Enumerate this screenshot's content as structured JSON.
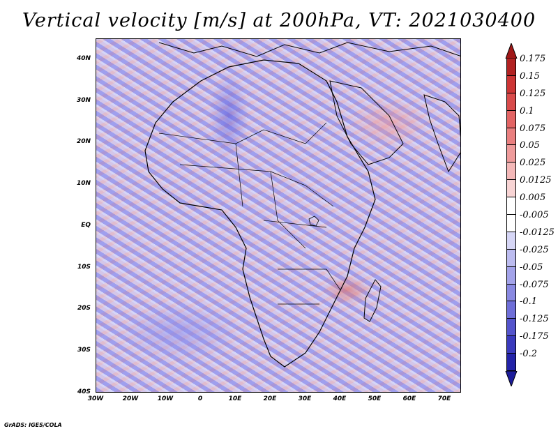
{
  "title": "Vertical velocity [m/s] at 200hPa, VT: 2021030400",
  "credit": "GrADS: IGES/COLA",
  "map": {
    "lat_labels": [
      "40N",
      "30N",
      "20N",
      "10N",
      "EQ",
      "10S",
      "20S",
      "30S",
      "40S"
    ],
    "lon_labels": [
      "30W",
      "20W",
      "10W",
      "0",
      "10E",
      "20E",
      "30E",
      "40E",
      "50E",
      "60E",
      "70E"
    ]
  },
  "colorbar": {
    "levels": [
      "0.175",
      "0.15",
      "0.125",
      "0.1",
      "0.075",
      "0.05",
      "0.025",
      "0.0125",
      "0.005",
      "-0.005",
      "-0.0125",
      "-0.025",
      "-0.05",
      "-0.075",
      "-0.1",
      "-0.125",
      "-0.175",
      "-0.2"
    ],
    "colors": [
      "#b22222",
      "#cd3535",
      "#d94b4b",
      "#e36464",
      "#ea7f7f",
      "#ef9b9b",
      "#f4b8b8",
      "#f8d4d4",
      "#ffffff",
      "#ffffff",
      "#d6d6f6",
      "#bcbcf0",
      "#a3a3ea",
      "#8989e2",
      "#6e6ed8",
      "#5454cc",
      "#3a3abd",
      "#2323a8"
    ]
  }
}
